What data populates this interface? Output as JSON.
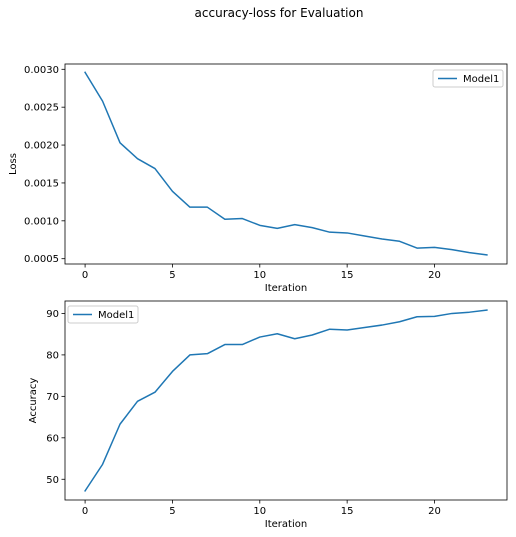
{
  "figure": {
    "title": "accuracy-loss for Evaluation"
  },
  "colors": {
    "series": "#1f77b4",
    "axes": "#000000",
    "legend_border": "#cccccc"
  },
  "chart_data": [
    {
      "type": "line",
      "xlabel": "Iteration",
      "ylabel": "Loss",
      "xlim": [
        -1.15,
        24.15
      ],
      "ylim": [
        0.00043,
        0.00307
      ],
      "xticks": [
        0,
        5,
        10,
        15,
        20
      ],
      "yticks": [
        0.0005,
        0.001,
        0.0015,
        0.002,
        0.0025,
        0.003
      ],
      "ytick_labels": [
        "0.0005",
        "0.0010",
        "0.0015",
        "0.0020",
        "0.0025",
        "0.0030"
      ],
      "legend": "upper right",
      "grid": false,
      "x": [
        0,
        1,
        2,
        3,
        4,
        5,
        6,
        7,
        8,
        9,
        10,
        11,
        12,
        13,
        14,
        15,
        16,
        17,
        18,
        19,
        20,
        21,
        22,
        23
      ],
      "series": [
        {
          "name": "Model1",
          "values": [
            0.00296,
            0.00258,
            0.00203,
            0.00182,
            0.00169,
            0.00139,
            0.00118,
            0.00118,
            0.00102,
            0.00103,
            0.00094,
            0.0009,
            0.00095,
            0.00091,
            0.00085,
            0.00084,
            0.0008,
            0.00076,
            0.00073,
            0.00064,
            0.00065,
            0.00062,
            0.00058,
            0.00055
          ]
        }
      ]
    },
    {
      "type": "line",
      "xlabel": "Iteration",
      "ylabel": "Accuracy",
      "xlim": [
        -1.15,
        24.15
      ],
      "ylim": [
        45.0,
        93.0
      ],
      "xticks": [
        0,
        5,
        10,
        15,
        20
      ],
      "yticks": [
        50,
        60,
        70,
        80,
        90
      ],
      "ytick_labels": [
        "50",
        "60",
        "70",
        "80",
        "90"
      ],
      "legend": "upper left",
      "grid": false,
      "x": [
        0,
        1,
        2,
        3,
        4,
        5,
        6,
        7,
        8,
        9,
        10,
        11,
        12,
        13,
        14,
        15,
        16,
        17,
        18,
        19,
        20,
        21,
        22,
        23
      ],
      "series": [
        {
          "name": "Model1",
          "values": [
            47.2,
            53.6,
            63.3,
            68.8,
            71.0,
            76.0,
            80.0,
            80.3,
            82.5,
            82.5,
            84.3,
            85.1,
            83.9,
            84.8,
            86.2,
            86.0,
            86.6,
            87.2,
            88.0,
            89.2,
            89.3,
            90.0,
            90.3,
            90.8
          ]
        }
      ]
    }
  ]
}
